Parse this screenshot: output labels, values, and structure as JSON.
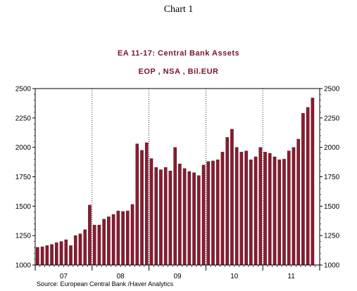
{
  "page_label": "Chart 1",
  "source": "Source:  European Central Bank /Haver Analytics",
  "colors": {
    "bar": "#8b1a2e",
    "bar_edge": "#3a0a12",
    "title": "#7a1428",
    "grid": "#000000"
  },
  "chart_data": {
    "type": "bar",
    "title": "EA 11-17: Central Bank Assets",
    "subtitle": "EOP , NSA , Bil.EUR",
    "xlabel": "",
    "ylabel": "",
    "ylim": [
      1000,
      2500
    ],
    "yticks": [
      1000,
      1250,
      1500,
      1750,
      2000,
      2250,
      2500
    ],
    "ytick_labels": [
      "1000",
      "1250",
      "1500",
      "1750",
      "2000",
      "2250",
      "2500"
    ],
    "y_axis_sides": "both",
    "grid": "dotted vertical lines at year boundaries",
    "start": "2007-01",
    "frequency": "monthly",
    "year_labels": [
      "07",
      "08",
      "09",
      "10",
      "11"
    ],
    "categories": [
      "2007-01",
      "2007-02",
      "2007-03",
      "2007-04",
      "2007-05",
      "2007-06",
      "2007-07",
      "2007-08",
      "2007-09",
      "2007-10",
      "2007-11",
      "2007-12",
      "2008-01",
      "2008-02",
      "2008-03",
      "2008-04",
      "2008-05",
      "2008-06",
      "2008-07",
      "2008-08",
      "2008-09",
      "2008-10",
      "2008-11",
      "2008-12",
      "2009-01",
      "2009-02",
      "2009-03",
      "2009-04",
      "2009-05",
      "2009-06",
      "2009-07",
      "2009-08",
      "2009-09",
      "2009-10",
      "2009-11",
      "2009-12",
      "2010-01",
      "2010-02",
      "2010-03",
      "2010-04",
      "2010-05",
      "2010-06",
      "2010-07",
      "2010-08",
      "2010-09",
      "2010-10",
      "2010-11",
      "2010-12",
      "2011-01",
      "2011-02",
      "2011-03",
      "2011-04",
      "2011-05",
      "2011-06",
      "2011-07",
      "2011-08",
      "2011-09",
      "2011-10",
      "2011-11",
      "2011-12"
    ],
    "values": [
      1150,
      1155,
      1165,
      1175,
      1190,
      1200,
      1215,
      1165,
      1250,
      1265,
      1300,
      1510,
      1340,
      1340,
      1390,
      1410,
      1430,
      1460,
      1455,
      1460,
      1515,
      2030,
      1975,
      2040,
      1905,
      1830,
      1810,
      1830,
      1800,
      2000,
      1860,
      1820,
      1795,
      1785,
      1760,
      1850,
      1880,
      1885,
      1895,
      1960,
      2085,
      2155,
      2000,
      1960,
      1970,
      1895,
      1920,
      2000,
      1960,
      1950,
      1920,
      1895,
      1900,
      1970,
      2000,
      2070,
      2290,
      2340,
      2420,
      1000
    ]
  }
}
